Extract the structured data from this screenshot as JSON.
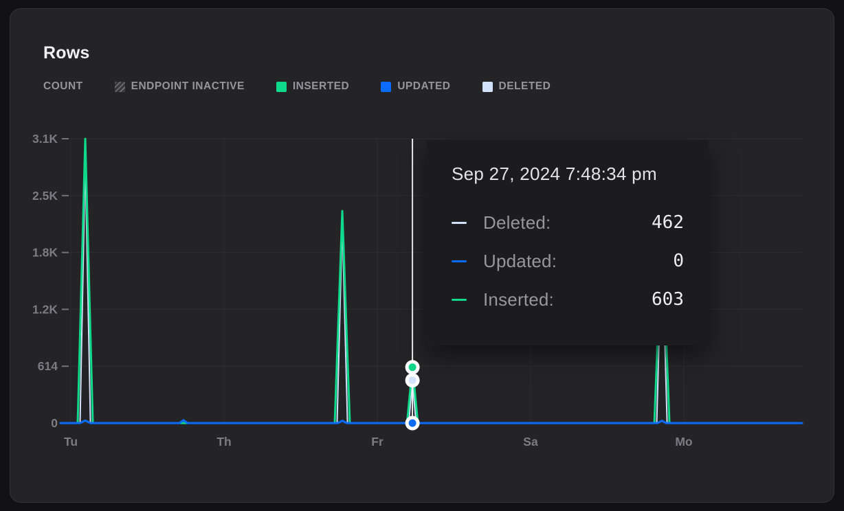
{
  "header": {
    "title": "Rows"
  },
  "legend": {
    "items": [
      {
        "label": "COUNT",
        "icon": "none",
        "color": null
      },
      {
        "label": "ENDPOINT INACTIVE",
        "icon": "hatched-square",
        "color": "hatched"
      },
      {
        "label": "INSERTED",
        "icon": "square",
        "color": "#0fd98b"
      },
      {
        "label": "UPDATED",
        "icon": "square",
        "color": "#0b6cfa"
      },
      {
        "label": "DELETED",
        "icon": "square",
        "color": "#d2e2fb"
      }
    ]
  },
  "tooltip": {
    "title": "Sep 27, 2024 7:48:34 pm",
    "rows": [
      {
        "label": "Deleted:",
        "value": "462",
        "color": "#d2e2fb"
      },
      {
        "label": "Updated:",
        "value": "0",
        "color": "#0b6cfa"
      },
      {
        "label": "Inserted:",
        "value": "603",
        "color": "#0fd98b"
      }
    ]
  },
  "colors": {
    "background": "#121214",
    "card": "#242427",
    "grid": "#2e2e32",
    "axis_text": "#7c7c82",
    "tick_dash": "#73737a",
    "tooltip_bg": "#1c1c1f",
    "hover_line": "#f0f0f2",
    "inserted": "#0fd98b",
    "updated": "#0b6cfa",
    "deleted": "#d2e2fb"
  },
  "chart_data": {
    "type": "line",
    "title": "Rows",
    "legend_position": "top",
    "grid": true,
    "ylim": [
      0,
      3070
    ],
    "y_ticks": [
      {
        "label": "0",
        "value": 0
      },
      {
        "label": "614",
        "value": 614
      },
      {
        "label": "1.2K",
        "value": 1228
      },
      {
        "label": "1.8K",
        "value": 1842
      },
      {
        "label": "2.5K",
        "value": 2456
      },
      {
        "label": "3.1K",
        "value": 3070
      }
    ],
    "x_ticks": [
      {
        "label": "Tu",
        "x": 0.0139
      },
      {
        "label": "Th",
        "x": 0.2206
      },
      {
        "label": "Fr",
        "x": 0.4273
      },
      {
        "label": "Sa",
        "x": 0.6339
      },
      {
        "label": "Mo",
        "x": 0.8406
      }
    ],
    "series": [
      {
        "name": "Deleted",
        "color": "#d2e2fb",
        "width": 2,
        "points": [
          [
            0,
            0
          ],
          [
            0.0264,
            0
          ],
          [
            0.0334,
            2870
          ],
          [
            0.0404,
            0
          ],
          [
            0.373,
            0
          ],
          [
            0.38,
            2180
          ],
          [
            0.387,
            0
          ],
          [
            0.4697,
            0
          ],
          [
            0.4746,
            462
          ],
          [
            0.4795,
            0
          ],
          [
            0.804,
            0
          ],
          [
            0.811,
            2000
          ],
          [
            0.818,
            0
          ],
          [
            1,
            0
          ]
        ]
      },
      {
        "name": "Inserted",
        "color": "#0fd98b",
        "width": 3,
        "points": [
          [
            0,
            0
          ],
          [
            0.0232,
            0
          ],
          [
            0.0334,
            3070
          ],
          [
            0.0436,
            0
          ],
          [
            0.3698,
            0
          ],
          [
            0.38,
            2290
          ],
          [
            0.3902,
            0
          ],
          [
            0.4673,
            0
          ],
          [
            0.4746,
            603
          ],
          [
            0.4819,
            0
          ],
          [
            0.8008,
            0
          ],
          [
            0.811,
            2100
          ],
          [
            0.8212,
            0
          ],
          [
            1,
            0
          ]
        ]
      },
      {
        "name": "Updated",
        "color": "#0b6cfa",
        "width": 3,
        "points": [
          [
            0,
            0
          ],
          [
            0.0264,
            0
          ],
          [
            0.0334,
            28
          ],
          [
            0.0404,
            0
          ],
          [
            0.1605,
            0
          ],
          [
            0.1659,
            32
          ],
          [
            0.1713,
            0
          ],
          [
            0.374,
            0
          ],
          [
            0.38,
            25
          ],
          [
            0.386,
            0
          ],
          [
            0.805,
            0
          ],
          [
            0.811,
            25
          ],
          [
            0.817,
            0
          ],
          [
            1,
            0
          ]
        ]
      }
    ],
    "hover": {
      "x": 0.4746,
      "timestamp": "Sep 27, 2024 7:48:34 pm",
      "points": [
        {
          "series": "Deleted",
          "value": 462,
          "color": "#d2e2fb"
        },
        {
          "series": "Inserted",
          "value": 603,
          "color": "#0fd98b"
        },
        {
          "series": "Updated",
          "value": 0,
          "color": "#0b6cfa"
        }
      ]
    }
  }
}
